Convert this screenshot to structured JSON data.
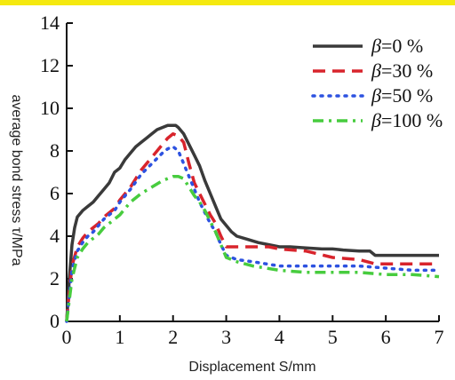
{
  "colors": {
    "top_bar": "#f5e90f",
    "axis": "#111111"
  },
  "chart_data": {
    "type": "line",
    "title": "",
    "xlabel": "Displacement S/mm",
    "ylabel": "average bond stress τ/MPa",
    "xlim": [
      0,
      7
    ],
    "ylim": [
      0,
      14
    ],
    "x_ticks": [
      0,
      1,
      2,
      3,
      4,
      5,
      6,
      7
    ],
    "y_ticks": [
      0,
      2,
      4,
      6,
      8,
      10,
      12,
      14
    ],
    "grid": false,
    "legend_position": "top-right",
    "series": [
      {
        "name": "β=0 %",
        "legend_symbol": "β",
        "legend_value": "=0 %",
        "color": "#3a3a3a",
        "style": "solid",
        "x": [
          0,
          0.05,
          0.1,
          0.15,
          0.2,
          0.3,
          0.4,
          0.5,
          0.6,
          0.7,
          0.8,
          0.9,
          1.0,
          1.1,
          1.2,
          1.3,
          1.4,
          1.5,
          1.6,
          1.7,
          1.8,
          1.9,
          2.0,
          2.05,
          2.1,
          2.2,
          2.3,
          2.4,
          2.5,
          2.6,
          2.7,
          2.8,
          2.9,
          3.0,
          3.1,
          3.2,
          3.4,
          3.6,
          3.8,
          4.0,
          4.2,
          4.5,
          4.8,
          5.0,
          5.2,
          5.5,
          5.7,
          5.8,
          5.9,
          6.1,
          6.5,
          7.0
        ],
        "y": [
          0,
          2.0,
          3.6,
          4.4,
          4.9,
          5.2,
          5.4,
          5.6,
          5.9,
          6.2,
          6.5,
          7.0,
          7.2,
          7.6,
          7.9,
          8.2,
          8.4,
          8.6,
          8.8,
          9.0,
          9.1,
          9.2,
          9.2,
          9.2,
          9.1,
          8.8,
          8.3,
          7.8,
          7.3,
          6.6,
          6.0,
          5.4,
          4.8,
          4.5,
          4.2,
          4.0,
          3.85,
          3.7,
          3.6,
          3.5,
          3.5,
          3.45,
          3.4,
          3.4,
          3.35,
          3.3,
          3.3,
          3.1,
          3.1,
          3.1,
          3.1,
          3.1
        ]
      },
      {
        "name": "β=30 %",
        "legend_symbol": "β",
        "legend_value": "=30 %",
        "color": "#d8242c",
        "style": "dashed",
        "x": [
          0,
          0.05,
          0.1,
          0.2,
          0.3,
          0.4,
          0.5,
          0.6,
          0.7,
          0.8,
          0.9,
          1.0,
          1.2,
          1.4,
          1.6,
          1.8,
          1.9,
          2.0,
          2.1,
          2.2,
          2.3,
          2.4,
          2.5,
          2.6,
          2.7,
          2.8,
          2.9,
          3.0,
          3.2,
          3.5,
          3.8,
          4.0,
          4.5,
          5.0,
          5.5,
          5.8,
          6.0,
          6.5,
          7.0
        ],
        "y": [
          0,
          1.4,
          2.6,
          3.5,
          3.9,
          4.2,
          4.4,
          4.6,
          4.9,
          5.1,
          5.3,
          5.7,
          6.3,
          7.1,
          7.7,
          8.3,
          8.6,
          8.8,
          8.7,
          8.4,
          7.4,
          6.5,
          6.0,
          5.5,
          5.0,
          4.6,
          4.0,
          3.5,
          3.5,
          3.5,
          3.5,
          3.4,
          3.3,
          3.0,
          2.9,
          2.7,
          2.7,
          2.7,
          2.7
        ]
      },
      {
        "name": "β=50 %",
        "legend_symbol": "β",
        "legend_value": "=50 %",
        "color": "#2d52e0",
        "style": "dotted",
        "x": [
          0,
          0.05,
          0.1,
          0.2,
          0.3,
          0.4,
          0.5,
          0.6,
          0.7,
          0.8,
          0.9,
          1.0,
          1.2,
          1.4,
          1.6,
          1.8,
          1.9,
          2.0,
          2.1,
          2.2,
          2.3,
          2.4,
          2.5,
          2.6,
          2.7,
          2.8,
          2.9,
          3.0,
          3.2,
          3.5,
          4.0,
          4.5,
          5.0,
          5.5,
          6.0,
          6.5,
          7.0
        ],
        "y": [
          0,
          1.2,
          2.4,
          3.3,
          3.7,
          4.0,
          4.2,
          4.5,
          4.8,
          5.0,
          5.2,
          5.6,
          6.2,
          6.9,
          7.4,
          7.9,
          8.1,
          8.2,
          8.0,
          7.4,
          6.8,
          6.2,
          5.6,
          5.1,
          4.6,
          4.2,
          3.6,
          3.1,
          2.9,
          2.8,
          2.6,
          2.6,
          2.6,
          2.6,
          2.5,
          2.4,
          2.4
        ]
      },
      {
        "name": "β=100 %",
        "legend_symbol": "β",
        "legend_value": "=100 %",
        "color": "#47cc3e",
        "style": "dashdot",
        "x": [
          0,
          0.05,
          0.1,
          0.2,
          0.3,
          0.4,
          0.5,
          0.6,
          0.7,
          0.8,
          0.9,
          1.0,
          1.2,
          1.4,
          1.6,
          1.8,
          2.0,
          2.1,
          2.2,
          2.3,
          2.4,
          2.5,
          2.6,
          2.7,
          2.8,
          2.9,
          3.0,
          3.2,
          3.5,
          4.0,
          4.5,
          5.0,
          5.5,
          6.0,
          6.5,
          7.0
        ],
        "y": [
          0,
          1.0,
          2.0,
          3.0,
          3.4,
          3.7,
          3.9,
          4.1,
          4.4,
          4.6,
          4.8,
          5.0,
          5.6,
          6.0,
          6.3,
          6.6,
          6.8,
          6.8,
          6.7,
          6.3,
          5.9,
          5.6,
          5.2,
          4.7,
          4.2,
          3.6,
          3.0,
          2.8,
          2.6,
          2.4,
          2.3,
          2.3,
          2.3,
          2.2,
          2.2,
          2.1
        ]
      }
    ]
  }
}
